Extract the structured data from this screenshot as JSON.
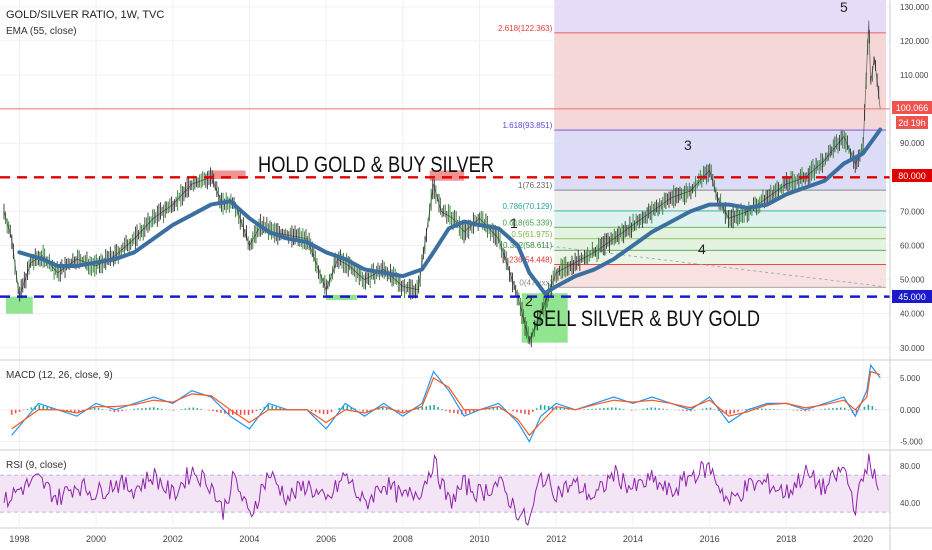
{
  "header": {
    "symbol_title": "GOLD/SILVER RATIO, 1W, TVC",
    "ema_label": "EMA (55, close)",
    "macd_label": "MACD (12, 26, close, 9)",
    "rsi_label": "RSI (9, close)"
  },
  "annotations": {
    "hold_text": "HOLD GOLD & BUY SILVER",
    "sell_text": "SELL SILVER & BUY GOLD",
    "wave_labels": [
      "1",
      "2",
      "3",
      "4",
      "5"
    ]
  },
  "price_tags": {
    "current": "100.066",
    "countdown": "2d 19h",
    "upper_line": "80.000",
    "lower_line": "45.000"
  },
  "chart_data": [
    {
      "type": "line",
      "title": "GOLD/SILVER RATIO, 1W, TVC",
      "x_ticks": [
        "1998",
        "2000",
        "2002",
        "2004",
        "2006",
        "2008",
        "2010",
        "2012",
        "2014",
        "2016",
        "2018",
        "2020"
      ],
      "xlim": [
        1997.6,
        2020.6
      ],
      "y_ticks": [
        "30.000",
        "40.000",
        "50.000",
        "60.000",
        "70.000",
        "80.000",
        "90.000",
        "110.000",
        "120.000",
        "130.000"
      ],
      "ylim": [
        27,
        132
      ],
      "series": [
        {
          "name": "GOLD/SILVER RATIO",
          "color": "#222222",
          "x": [
            1997.6,
            1997.8,
            1998.0,
            1998.3,
            1998.6,
            1999.0,
            1999.5,
            2000.0,
            2000.5,
            2001.0,
            2001.5,
            2002.0,
            2002.5,
            2003.0,
            2003.3,
            2003.6,
            2004.0,
            2004.3,
            2004.6,
            2005.0,
            2005.5,
            2006.0,
            2006.3,
            2006.6,
            2007.0,
            2007.5,
            2008.0,
            2008.4,
            2008.8,
            2009.0,
            2009.3,
            2009.6,
            2010.0,
            2010.5,
            2011.0,
            2011.3,
            2011.6,
            2012.0,
            2012.5,
            2013.0,
            2013.5,
            2014.0,
            2014.5,
            2015.0,
            2015.5,
            2016.0,
            2016.2,
            2016.5,
            2017.0,
            2017.5,
            2018.0,
            2018.5,
            2019.0,
            2019.5,
            2019.8,
            2020.0,
            2020.15,
            2020.2,
            2020.3,
            2020.45
          ],
          "y": [
            70,
            62,
            45,
            55,
            57,
            52,
            56,
            54,
            57,
            62,
            68,
            72,
            78,
            80,
            72,
            73,
            60,
            66,
            64,
            63,
            62,
            47,
            56,
            54,
            50,
            53,
            48,
            47,
            78,
            70,
            68,
            64,
            68,
            62,
            45,
            32,
            40,
            52,
            55,
            58,
            62,
            66,
            70,
            74,
            76,
            82,
            74,
            68,
            70,
            74,
            78,
            80,
            85,
            92,
            84,
            88,
            126,
            108,
            115,
            100
          ]
        },
        {
          "name": "EMA (55, close)",
          "color": "#3a6f9f",
          "x": [
            1998.0,
            1998.6,
            1999.0,
            1999.5,
            2000.0,
            2000.5,
            2001.0,
            2001.5,
            2002.0,
            2002.5,
            2003.0,
            2003.5,
            2004.0,
            2004.5,
            2005.0,
            2005.5,
            2006.0,
            2006.5,
            2007.0,
            2007.5,
            2008.0,
            2008.5,
            2008.8,
            2009.2,
            2009.6,
            2010.0,
            2010.5,
            2011.0,
            2011.3,
            2011.7,
            2012.0,
            2012.5,
            2013.0,
            2013.5,
            2014.0,
            2014.5,
            2015.0,
            2015.5,
            2016.0,
            2016.5,
            2017.0,
            2017.5,
            2018.0,
            2018.5,
            2019.0,
            2019.5,
            2020.0,
            2020.45
          ],
          "y": [
            58,
            56,
            54,
            54,
            55,
            56,
            58,
            62,
            66,
            69,
            72,
            73,
            68,
            64,
            62,
            61,
            58,
            56,
            53,
            52,
            51,
            53,
            58,
            65,
            67,
            66,
            65,
            60,
            52,
            46,
            48,
            51,
            53,
            56,
            60,
            64,
            67,
            70,
            72,
            72,
            71,
            72,
            75,
            77,
            79,
            84,
            87,
            94
          ]
        }
      ],
      "hlines": [
        {
          "label": "80.000",
          "value": 80,
          "color": "#e00000"
        },
        {
          "label": "45.000",
          "value": 45,
          "color": "#1a1acc"
        },
        {
          "label": "100.066",
          "value": 100.066,
          "color": "#e57373"
        }
      ],
      "fib_levels": [
        {
          "label": "2.618(122.363)",
          "value": 122.363,
          "color": "#e53935"
        },
        {
          "label": "1.618(93.851)",
          "value": 93.851,
          "color": "#5c4ad6"
        },
        {
          "label": "1(76.231)",
          "value": 76.231,
          "color": "#666666"
        },
        {
          "label": "0.786(70.129)",
          "value": 70.129,
          "color": "#26a69a"
        },
        {
          "label": "0.618(65.339)",
          "value": 65.339,
          "color": "#43a047"
        },
        {
          "label": "0.5(61.975)",
          "value": 61.975,
          "color": "#7cb342"
        },
        {
          "label": "0.382(58.611)",
          "value": 58.611,
          "color": "#388e3c"
        },
        {
          "label": "0.236(54.448)",
          "value": 54.448,
          "color": "#e53935"
        },
        {
          "label": "0(47.xxx)",
          "value": 47.75,
          "color": "#888888"
        }
      ]
    },
    {
      "type": "line",
      "title": "MACD (12, 26, close, 9)",
      "y_ticks": [
        "5.000",
        "0.000",
        "-5.000"
      ],
      "ylim": [
        -6,
        7.5
      ],
      "series": [
        {
          "name": "MACD",
          "color": "#2196f3",
          "x": [
            1997.8,
            1998.5,
            1999.0,
            1999.5,
            2000.0,
            2000.5,
            2001.0,
            2001.5,
            2002.0,
            2002.5,
            2003.0,
            2003.5,
            2004.0,
            2004.5,
            2005.0,
            2005.5,
            2006.0,
            2006.5,
            2007.0,
            2007.5,
            2008.0,
            2008.5,
            2008.8,
            2009.2,
            2009.6,
            2010.0,
            2010.5,
            2011.0,
            2011.3,
            2011.6,
            2012.0,
            2012.5,
            2013.0,
            2013.5,
            2014.0,
            2014.5,
            2015.0,
            2015.5,
            2016.0,
            2016.5,
            2017.0,
            2017.5,
            2018.0,
            2018.5,
            2019.0,
            2019.5,
            2019.8,
            2020.1,
            2020.2,
            2020.45
          ],
          "y": [
            -4,
            1,
            0,
            -1,
            1,
            0,
            1,
            2,
            1,
            3,
            2,
            -1,
            -3,
            1,
            0,
            0,
            -3,
            1,
            -1,
            1,
            -1,
            1,
            6,
            3,
            -1,
            0,
            1,
            -2,
            -5,
            -1,
            1,
            0,
            1,
            2,
            1,
            2,
            1,
            0,
            2,
            -2,
            0,
            1,
            1,
            0,
            1,
            2,
            -1,
            3,
            7,
            5
          ]
        },
        {
          "name": "Signal",
          "color": "#ff5722",
          "x": [
            1997.8,
            1998.5,
            1999.0,
            1999.5,
            2000.0,
            2000.5,
            2001.0,
            2001.5,
            2002.0,
            2002.5,
            2003.0,
            2003.5,
            2004.0,
            2004.5,
            2005.0,
            2005.5,
            2006.0,
            2006.5,
            2007.0,
            2007.5,
            2008.0,
            2008.5,
            2008.8,
            2009.2,
            2009.6,
            2010.0,
            2010.5,
            2011.0,
            2011.3,
            2011.6,
            2012.0,
            2012.5,
            2013.0,
            2013.5,
            2014.0,
            2014.5,
            2015.0,
            2015.5,
            2016.0,
            2016.5,
            2017.0,
            2017.5,
            2018.0,
            2018.5,
            2019.0,
            2019.5,
            2019.8,
            2020.1,
            2020.2,
            2020.45
          ],
          "y": [
            -3,
            0,
            0,
            -0.5,
            0.5,
            0.5,
            0.8,
            1.5,
            1.2,
            2.5,
            2.2,
            0,
            -2,
            0,
            0,
            0,
            -2,
            0,
            -0.5,
            0.5,
            -0.5,
            0.5,
            5,
            3.5,
            0,
            0,
            0.5,
            -1.5,
            -4,
            -2,
            0.5,
            0,
            0.8,
            1.5,
            1.2,
            1.5,
            1,
            0.3,
            1.5,
            -1,
            -0.3,
            0.8,
            1,
            0.3,
            0.8,
            1.5,
            0,
            2,
            6,
            5.5
          ]
        }
      ]
    },
    {
      "type": "line",
      "title": "RSI (9, close)",
      "y_ticks": [
        "80.00",
        "40.00"
      ],
      "ylim": [
        15,
        95
      ],
      "band": [
        30,
        70
      ],
      "series": [
        {
          "name": "RSI",
          "color": "#8e24aa",
          "x": [
            1997.6,
            1998.0,
            1998.5,
            1999.0,
            1999.5,
            2000.0,
            2000.5,
            2001.0,
            2001.5,
            2002.0,
            2002.5,
            2003.0,
            2003.3,
            2003.6,
            2004.0,
            2004.5,
            2005.0,
            2005.5,
            2006.0,
            2006.5,
            2007.0,
            2007.5,
            2008.0,
            2008.5,
            2008.8,
            2009.2,
            2009.6,
            2010.0,
            2010.5,
            2011.0,
            2011.3,
            2011.6,
            2012.0,
            2012.5,
            2013.0,
            2013.5,
            2014.0,
            2014.5,
            2015.0,
            2015.5,
            2016.0,
            2016.5,
            2017.0,
            2017.5,
            2018.0,
            2018.5,
            2019.0,
            2019.5,
            2019.8,
            2020.15,
            2020.45
          ],
          "y": [
            40,
            55,
            65,
            45,
            60,
            50,
            62,
            55,
            70,
            48,
            75,
            60,
            30,
            68,
            25,
            72,
            45,
            60,
            40,
            70,
            38,
            62,
            45,
            55,
            85,
            40,
            60,
            50,
            62,
            30,
            18,
            70,
            52,
            60,
            45,
            72,
            55,
            65,
            50,
            70,
            78,
            40,
            58,
            62,
            50,
            72,
            55,
            78,
            35,
            90,
            45
          ]
        }
      ]
    }
  ]
}
